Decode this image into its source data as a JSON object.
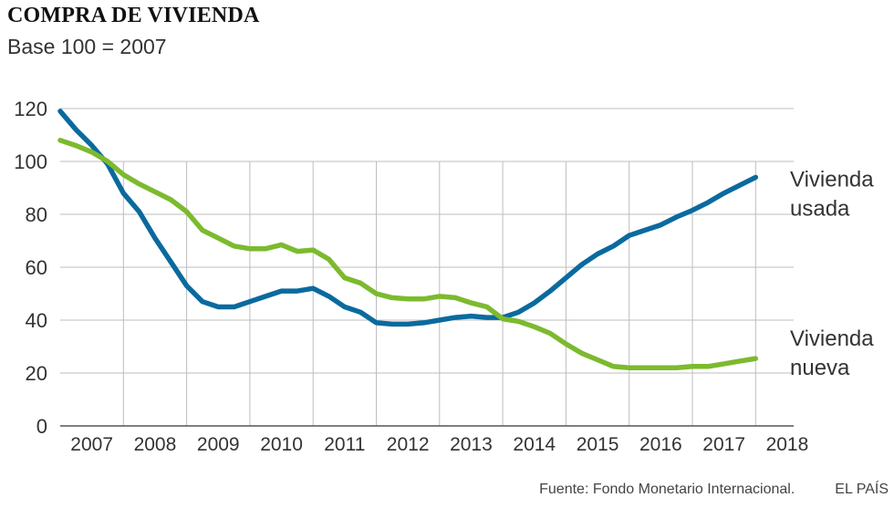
{
  "header": {
    "title": "COMPRA DE VIVIENDA",
    "subtitle": "Base 100 = 2007"
  },
  "footer": {
    "source": "Fuente: Fondo Monetario Internacional.",
    "brand": "EL PAÍS"
  },
  "colors": {
    "used": "#0a6a9e",
    "new": "#7cba2e",
    "grid": "#bdbdbd",
    "axis": "#555555"
  },
  "chart_data": {
    "type": "line",
    "title": "COMPRA DE VIVIENDA",
    "subtitle": "Base 100 = 2007",
    "xlabel": "",
    "ylabel": "",
    "xlim": [
      2007.0,
      2018.5
    ],
    "ylim": [
      0,
      120
    ],
    "yticks": [
      0,
      20,
      40,
      60,
      80,
      100,
      120
    ],
    "xtick_labels": [
      "2007",
      "2008",
      "2009",
      "2010",
      "2011",
      "2012",
      "2013",
      "2014",
      "2015",
      "2016",
      "2017",
      "2018"
    ],
    "grid": true,
    "series": [
      {
        "name": "Vivienda usada",
        "label_lines": [
          "Vivienda",
          "usada"
        ],
        "color_key": "used",
        "x": [
          2007.0,
          2007.25,
          2007.5,
          2007.75,
          2008.0,
          2008.25,
          2008.5,
          2008.75,
          2009.0,
          2009.25,
          2009.5,
          2009.75,
          2010.0,
          2010.25,
          2010.5,
          2010.75,
          2011.0,
          2011.25,
          2011.5,
          2011.75,
          2012.0,
          2012.25,
          2012.5,
          2012.75,
          2013.0,
          2013.25,
          2013.5,
          2013.75,
          2014.0,
          2014.25,
          2014.5,
          2014.75,
          2015.0,
          2015.25,
          2015.5,
          2015.75,
          2016.0,
          2016.25,
          2016.5,
          2016.75,
          2017.0,
          2017.25,
          2017.5,
          2017.75,
          2018.0
        ],
        "y": [
          119,
          112,
          106,
          99,
          88,
          81,
          71,
          62,
          53,
          47,
          45,
          45,
          47,
          49,
          51,
          51,
          52,
          49,
          45,
          43,
          39,
          38.5,
          38.5,
          39,
          40,
          41,
          41.5,
          41,
          41,
          43,
          46.5,
          51,
          56,
          61,
          65,
          68,
          72,
          74,
          76,
          79,
          81.5,
          84.5,
          88,
          91,
          94
        ]
      },
      {
        "name": "Vivienda nueva",
        "label_lines": [
          "Vivienda",
          "nueva"
        ],
        "color_key": "new",
        "x": [
          2007.0,
          2007.25,
          2007.5,
          2007.75,
          2008.0,
          2008.25,
          2008.5,
          2008.75,
          2009.0,
          2009.25,
          2009.5,
          2009.75,
          2010.0,
          2010.25,
          2010.5,
          2010.75,
          2011.0,
          2011.25,
          2011.5,
          2011.75,
          2012.0,
          2012.25,
          2012.5,
          2012.75,
          2013.0,
          2013.25,
          2013.5,
          2013.75,
          2014.0,
          2014.25,
          2014.5,
          2014.75,
          2015.0,
          2015.25,
          2015.5,
          2015.75,
          2016.0,
          2016.25,
          2016.5,
          2016.75,
          2017.0,
          2017.25,
          2017.5,
          2017.75,
          2018.0
        ],
        "y": [
          108,
          106,
          103.5,
          100,
          95,
          91.5,
          88.5,
          85.5,
          81,
          74,
          71,
          68,
          67,
          67,
          68.5,
          66,
          66.5,
          63,
          56,
          54,
          50,
          48.5,
          48,
          48,
          49,
          48.5,
          46.5,
          45,
          40.5,
          39.5,
          37.5,
          35,
          31,
          27.5,
          25,
          22.5,
          22,
          22,
          22,
          22,
          22.5,
          22.5,
          23.5,
          24.5,
          25.5
        ]
      }
    ]
  }
}
